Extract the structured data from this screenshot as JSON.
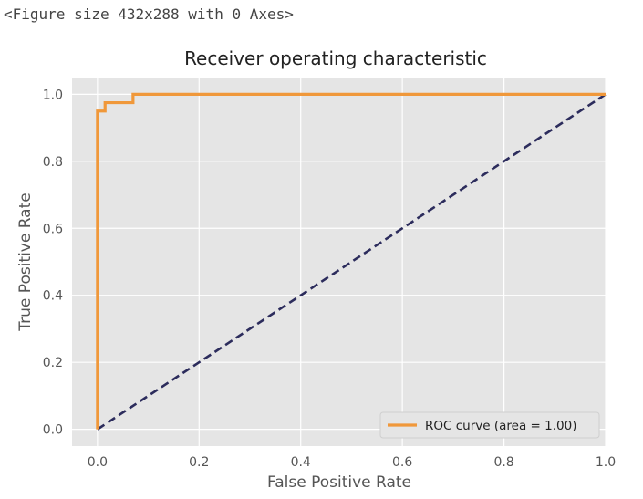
{
  "figure_text": "<Figure size 432x288 with 0 Axes>",
  "colors": {
    "plot_bg": "#e5e5e5",
    "grid": "#ffffff",
    "roc_line": "#f0983a",
    "diagonal": "#2c2c5c",
    "text": "#555555"
  },
  "chart_data": {
    "type": "line",
    "title": "Receiver operating characteristic",
    "xlabel": "False Positive Rate",
    "ylabel": "True Positive Rate",
    "xlim": [
      -0.05,
      1.0
    ],
    "ylim": [
      -0.05,
      1.05
    ],
    "xticks": [
      0.0,
      0.2,
      0.4,
      0.6,
      0.8,
      1.0
    ],
    "xtick_labels": [
      "0.0",
      "0.2",
      "0.4",
      "0.6",
      "0.8",
      "1.0"
    ],
    "yticks": [
      0.0,
      0.2,
      0.4,
      0.6,
      0.8,
      1.0
    ],
    "ytick_labels": [
      "0.0",
      "0.2",
      "0.4",
      "0.6",
      "0.8",
      "1.0"
    ],
    "grid": true,
    "legend_position": "lower-right",
    "series": [
      {
        "name": "ROC curve (area = 1.00)",
        "style": "solid",
        "x": [
          0.0,
          0.0,
          0.015,
          0.015,
          0.07,
          0.07,
          1.0
        ],
        "y": [
          0.0,
          0.95,
          0.95,
          0.975,
          0.975,
          1.0,
          1.0
        ]
      },
      {
        "style": "dashed",
        "x": [
          0.0,
          1.0
        ],
        "y": [
          0.0,
          1.0
        ]
      }
    ]
  }
}
